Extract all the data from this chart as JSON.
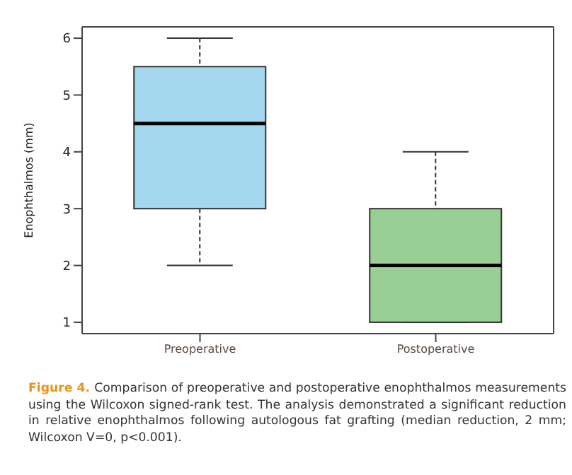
{
  "chart_data": {
    "type": "box",
    "categories": [
      "Preoperative",
      "Postoperative"
    ],
    "boxes": [
      {
        "low": 2,
        "q1": 3,
        "median": 4.5,
        "q3": 5.5,
        "high": 6
      },
      {
        "low": 1,
        "q1": 1,
        "median": 2,
        "q3": 3,
        "high": 4
      }
    ],
    "colors": [
      "#a5d8ee",
      "#99cf95"
    ],
    "ylabel": "Enophthalmos (mm)",
    "ylim": [
      0.8,
      6.2
    ],
    "yticks": [
      1,
      2,
      3,
      4,
      5,
      6
    ],
    "annotations": [
      "Figure 4.",
      "Comparison of preoperative and postoperative enophthalmos measurements using the Wilcoxon signed-rank test. The analysis demonstrated a significant reduction in relative enophthalmos following autologous fat grafting (median reduction, 2 mm; Wilcoxon V=0, p<0.001)."
    ]
  }
}
